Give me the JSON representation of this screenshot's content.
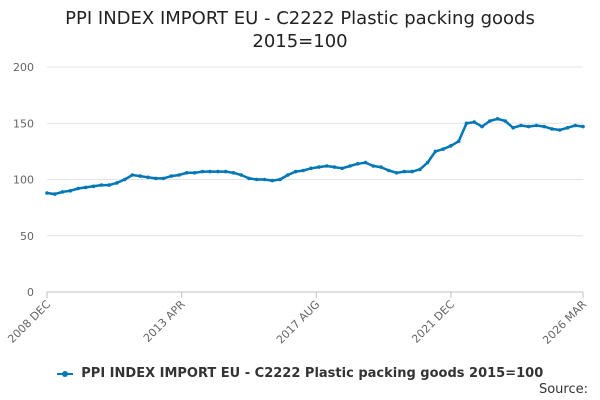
{
  "chart_data": {
    "type": "line",
    "title": "PPI INDEX IMPORT EU - C2222 Plastic packing goods",
    "subtitle": "2015=100",
    "xlabel": "",
    "ylabel": "",
    "ylim": [
      0,
      200
    ],
    "yticks": [
      0,
      50,
      100,
      150,
      200
    ],
    "x_tick_labels": [
      "2008 DEC",
      "2013 APR",
      "2017 AUG",
      "2021 DEC",
      "2026 MAR"
    ],
    "grid": true,
    "legend_position": "bottom",
    "series": [
      {
        "name": "PPI INDEX IMPORT EU - C2222 Plastic packing goods 2015=100",
        "color": "#0077b6",
        "x": [
          "2008-12",
          "2009-03",
          "2009-06",
          "2009-09",
          "2009-12",
          "2010-03",
          "2010-06",
          "2010-09",
          "2010-12",
          "2011-03",
          "2011-06",
          "2011-09",
          "2011-12",
          "2012-03",
          "2012-06",
          "2012-09",
          "2012-12",
          "2013-03",
          "2013-06",
          "2013-09",
          "2013-12",
          "2014-03",
          "2014-06",
          "2014-09",
          "2014-12",
          "2015-03",
          "2015-06",
          "2015-09",
          "2015-12",
          "2016-03",
          "2016-06",
          "2016-09",
          "2016-12",
          "2017-03",
          "2017-06",
          "2017-09",
          "2017-12",
          "2018-03",
          "2018-06",
          "2018-09",
          "2018-12",
          "2019-03",
          "2019-06",
          "2019-09",
          "2019-12",
          "2020-03",
          "2020-06",
          "2020-09",
          "2020-12",
          "2021-03",
          "2021-06",
          "2021-09",
          "2021-12",
          "2022-03",
          "2022-06",
          "2022-09",
          "2022-12",
          "2023-03",
          "2023-06",
          "2023-09",
          "2023-12",
          "2024-03",
          "2024-06",
          "2024-09",
          "2024-12",
          "2025-03",
          "2025-06",
          "2025-09",
          "2025-12",
          "2026-03"
        ],
        "values": [
          88,
          87,
          89,
          90,
          92,
          93,
          94,
          95,
          95,
          97,
          100,
          104,
          103,
          102,
          101,
          101,
          103,
          104,
          106,
          106,
          107,
          107,
          107,
          107,
          106,
          104,
          101,
          100,
          100,
          99,
          100,
          104,
          107,
          108,
          110,
          111,
          112,
          111,
          110,
          112,
          114,
          115,
          112,
          111,
          108,
          106,
          107,
          107,
          109,
          115,
          125,
          127,
          130,
          134,
          150,
          151,
          147,
          152,
          154,
          152,
          146,
          148,
          147,
          148,
          147,
          145,
          144,
          146,
          148,
          147
        ]
      }
    ]
  },
  "source_label": "Source:"
}
